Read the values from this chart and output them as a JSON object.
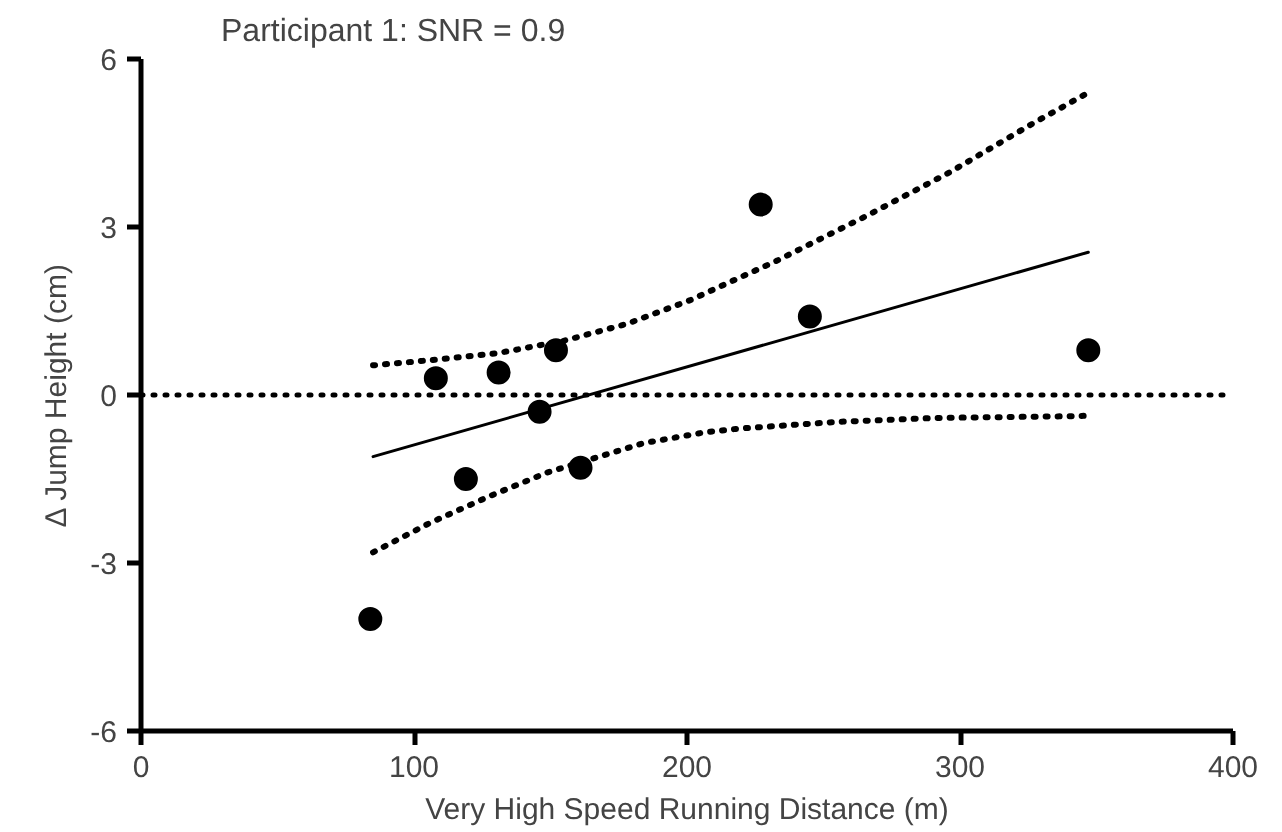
{
  "chart_data": {
    "type": "scatter",
    "title": "Participant 1: SNR = 0.9",
    "xlabel": "Very High Speed Running Distance (m)",
    "ylabel": "Δ Jump Height (cm)",
    "xlim": [
      0,
      400
    ],
    "xticks": [
      0,
      100,
      200,
      300,
      400
    ],
    "ylim": [
      -6,
      6
    ],
    "yticks": [
      -6,
      -3,
      0,
      3,
      6
    ],
    "grid": false,
    "series": [
      {
        "marker": "circle",
        "color": "#000000",
        "x": [
          84,
          108,
          131,
          152,
          146,
          119,
          161,
          227,
          245,
          347
        ],
        "values": [
          -4.0,
          0.3,
          0.4,
          0.8,
          -0.3,
          -1.5,
          -1.3,
          3.4,
          1.4,
          0.8
        ]
      },
      {
        "type": "line",
        "marker": "none",
        "line_style": "solid",
        "color": "#000000",
        "x": [
          85,
          347
        ],
        "values": [
          -1.1,
          2.55
        ]
      },
      {
        "type": "line",
        "marker": "none",
        "line_style": "dotted",
        "color": "#000000",
        "x": [
          85,
          108,
          131,
          155,
          178,
          201,
          233,
          265,
          296,
          326,
          347
        ],
        "values": [
          0.53,
          0.63,
          0.75,
          0.97,
          1.27,
          1.69,
          2.4,
          3.18,
          3.97,
          4.83,
          5.4
        ]
      },
      {
        "type": "line",
        "marker": "none",
        "line_style": "dotted",
        "color": "#000000",
        "x": [
          85,
          106,
          128,
          149,
          184,
          206,
          219,
          255,
          291,
          339,
          347
        ],
        "values": [
          -2.81,
          -2.28,
          -1.8,
          -1.38,
          -0.86,
          -0.67,
          -0.6,
          -0.48,
          -0.41,
          -0.38,
          -0.37
        ]
      }
    ],
    "ref_lines": [
      {
        "axis": "y",
        "value": 0,
        "line_style": "dotted",
        "color": "#000000"
      }
    ]
  }
}
